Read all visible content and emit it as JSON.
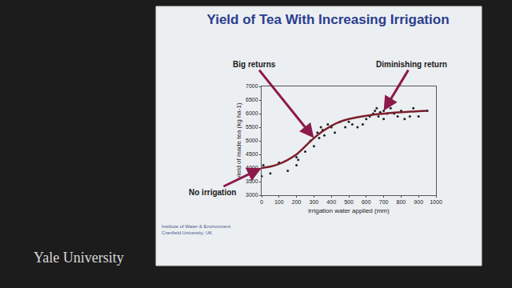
{
  "chart_data": {
    "type": "scatter",
    "title": "Yield of Tea With Increasing Irrigation",
    "x_label": "irrigation water applied (mm)",
    "y_label": "yield of made tea (kg ha-1)",
    "xlim": [
      0,
      1000
    ],
    "ylim": [
      3000,
      7000
    ],
    "xticks": [
      0,
      100,
      200,
      300,
      400,
      500,
      600,
      700,
      800,
      900,
      1000
    ],
    "yticks": [
      3000,
      3500,
      4000,
      4500,
      5000,
      5500,
      6000,
      6500,
      7000
    ],
    "grid": false,
    "series": [
      {
        "type": "scatter",
        "marker": "dot",
        "color": "#222222",
        "x": [
          0,
          10,
          50,
          100,
          150,
          200,
          200,
          210,
          250,
          280,
          300,
          320,
          330,
          340,
          350,
          360,
          380,
          400,
          420,
          450,
          480,
          500,
          520,
          550,
          580,
          600,
          620,
          640,
          650,
          660,
          670,
          680,
          700,
          700,
          720,
          740,
          760,
          780,
          800,
          820,
          850,
          870,
          900,
          950
        ],
        "values": [
          3700,
          4100,
          3800,
          4200,
          3900,
          4100,
          4400,
          4300,
          4600,
          5000,
          4800,
          5300,
          5100,
          5500,
          5400,
          5200,
          5600,
          5500,
          5300,
          5700,
          5500,
          5700,
          5600,
          5500,
          5600,
          5800,
          5900,
          6000,
          6100,
          6200,
          5900,
          6050,
          6100,
          5800,
          6000,
          6200,
          6000,
          5900,
          6100,
          5800,
          5900,
          6200,
          5900,
          6100
        ]
      },
      {
        "type": "line",
        "line_style": "solid",
        "color": "#7a1f2b",
        "x": [
          0,
          50,
          100,
          150,
          200,
          250,
          300,
          350,
          400,
          450,
          500,
          550,
          600,
          650,
          700,
          750,
          800,
          850,
          900,
          950
        ],
        "values": [
          4000,
          4050,
          4150,
          4300,
          4500,
          4800,
          5100,
          5350,
          5550,
          5700,
          5800,
          5870,
          5920,
          5970,
          6000,
          6030,
          6050,
          6070,
          6090,
          6100
        ]
      }
    ],
    "annotations": [
      {
        "text": "Big returns",
        "x": 300,
        "y": 5100
      },
      {
        "text": "Diminishing return",
        "x": 700,
        "y": 6100
      },
      {
        "text": "No irrigation",
        "x": 0,
        "y": 4000
      }
    ],
    "source": [
      "Institute of Water & Environment",
      "Cranfield University, UK"
    ],
    "watermark": "Yale University"
  }
}
